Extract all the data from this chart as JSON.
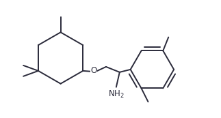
{
  "bg_color": "#ffffff",
  "bond_color": "#2a2a3a",
  "line_width": 1.4,
  "font_size": 8.5
}
